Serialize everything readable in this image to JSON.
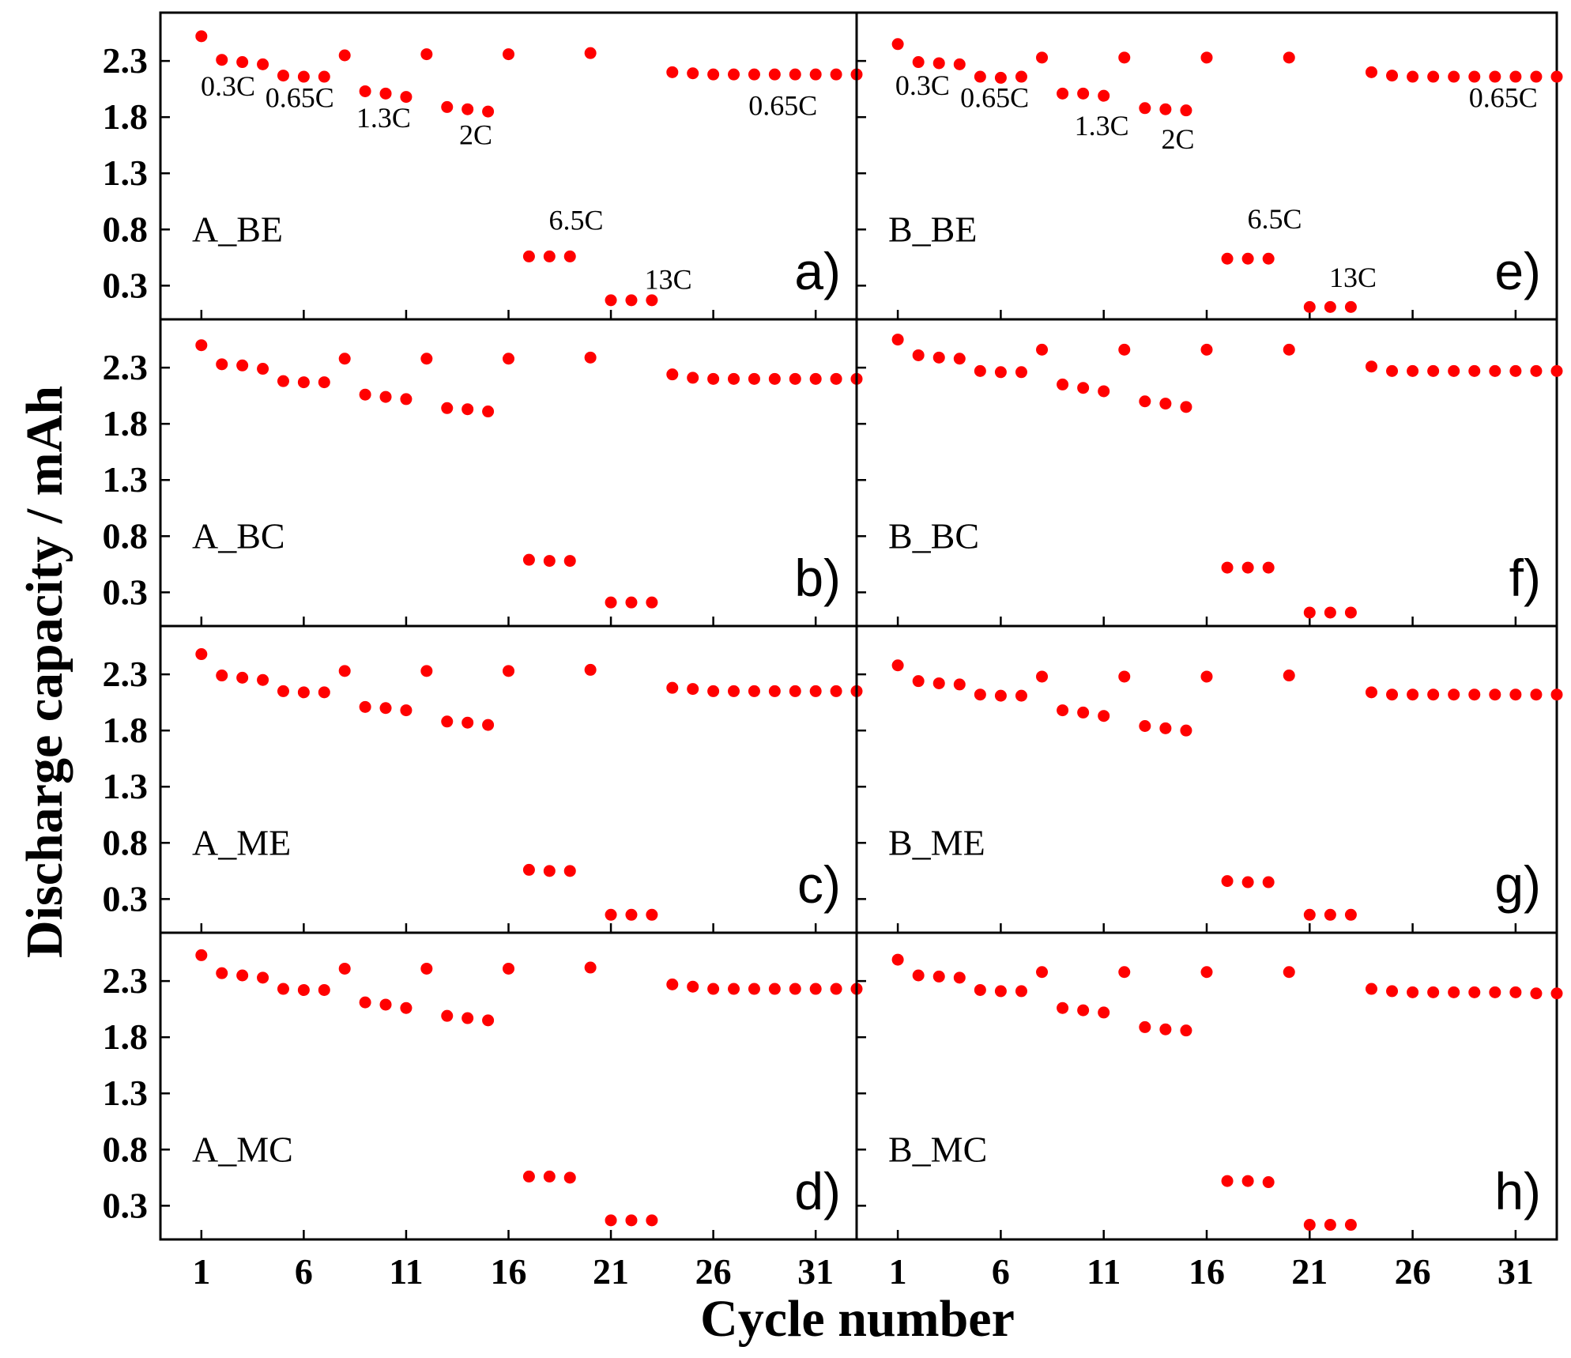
{
  "chart_data": {
    "type": "scatter",
    "title": "",
    "xlabel": "Cycle number",
    "ylabel": "Discharge capacity / mAh",
    "x_ticks": [
      "1",
      "6",
      "11",
      "16",
      "21",
      "26",
      "31"
    ],
    "y_ticks": [
      "0.3",
      "0.8",
      "1.3",
      "1.8",
      "2.3"
    ],
    "xlim": [
      -1,
      33
    ],
    "ylim": [
      0,
      2.73
    ],
    "marker_color": "#ff0000",
    "panels": [
      {
        "id": "a",
        "letter": "a)",
        "sample": "A_BE",
        "rate_labels": [
          {
            "text": "0.3C",
            "cycle": 2.3,
            "capacity": 1.99
          },
          {
            "text": "0.65C",
            "cycle": 5.8,
            "capacity": 1.89
          },
          {
            "text": "1.3C",
            "cycle": 9.9,
            "capacity": 1.71
          },
          {
            "text": "2C",
            "cycle": 14.4,
            "capacity": 1.56
          },
          {
            "text": "6.5C",
            "cycle": 19.3,
            "capacity": 0.8
          },
          {
            "text": "13C",
            "cycle": 23.8,
            "capacity": 0.27
          },
          {
            "text": "0.65C",
            "cycle": 29.4,
            "capacity": 1.82
          }
        ],
        "series": [
          {
            "name": "A_BE",
            "x": [
              1,
              2,
              3,
              4,
              5,
              6,
              7,
              8,
              9,
              10,
              11,
              12,
              13,
              14,
              15,
              16,
              17,
              18,
              19,
              20,
              21,
              22,
              23,
              24,
              25,
              26,
              27,
              28,
              29,
              30,
              31,
              32,
              33
            ],
            "y": [
              2.52,
              2.31,
              2.29,
              2.27,
              2.17,
              2.16,
              2.16,
              2.35,
              2.03,
              2.01,
              1.98,
              2.36,
              1.89,
              1.87,
              1.85,
              2.36,
              0.56,
              0.56,
              0.56,
              2.37,
              0.17,
              0.17,
              0.17,
              2.2,
              2.19,
              2.18,
              2.18,
              2.18,
              2.18,
              2.18,
              2.18,
              2.18,
              2.18
            ]
          }
        ]
      },
      {
        "id": "b",
        "letter": "b)",
        "sample": "A_BC",
        "rate_labels": [],
        "series": [
          {
            "name": "A_BC",
            "x": [
              1,
              2,
              3,
              4,
              5,
              6,
              7,
              8,
              9,
              10,
              11,
              12,
              13,
              14,
              15,
              16,
              17,
              18,
              19,
              20,
              21,
              22,
              23,
              24,
              25,
              26,
              27,
              28,
              29,
              30,
              31,
              32,
              33
            ],
            "y": [
              2.5,
              2.33,
              2.32,
              2.29,
              2.18,
              2.17,
              2.17,
              2.38,
              2.06,
              2.04,
              2.02,
              2.38,
              1.94,
              1.93,
              1.91,
              2.38,
              0.59,
              0.58,
              0.58,
              2.39,
              0.21,
              0.21,
              0.21,
              2.24,
              2.21,
              2.2,
              2.2,
              2.2,
              2.2,
              2.2,
              2.2,
              2.2,
              2.2
            ]
          }
        ]
      },
      {
        "id": "c",
        "letter": "c)",
        "sample": "A_ME",
        "rate_labels": [],
        "series": [
          {
            "name": "A_ME",
            "x": [
              1,
              2,
              3,
              4,
              5,
              6,
              7,
              8,
              9,
              10,
              11,
              12,
              13,
              14,
              15,
              16,
              17,
              18,
              19,
              20,
              21,
              22,
              23,
              24,
              25,
              26,
              27,
              28,
              29,
              30,
              31,
              32,
              33
            ],
            "y": [
              2.48,
              2.29,
              2.27,
              2.25,
              2.15,
              2.14,
              2.14,
              2.33,
              2.01,
              2.0,
              1.98,
              2.33,
              1.88,
              1.87,
              1.85,
              2.33,
              0.56,
              0.55,
              0.55,
              2.34,
              0.16,
              0.16,
              0.16,
              2.18,
              2.17,
              2.15,
              2.15,
              2.15,
              2.15,
              2.15,
              2.15,
              2.15,
              2.15
            ]
          }
        ]
      },
      {
        "id": "d",
        "letter": "d)",
        "sample": "A_MC",
        "rate_labels": [],
        "series": [
          {
            "name": "A_MC",
            "x": [
              1,
              2,
              3,
              4,
              5,
              6,
              7,
              8,
              9,
              10,
              11,
              12,
              13,
              14,
              15,
              16,
              17,
              18,
              19,
              20,
              21,
              22,
              23,
              24,
              25,
              26,
              27,
              28,
              29,
              30,
              31,
              32,
              33
            ],
            "y": [
              2.53,
              2.37,
              2.35,
              2.33,
              2.23,
              2.22,
              2.22,
              2.41,
              2.11,
              2.09,
              2.06,
              2.41,
              1.99,
              1.97,
              1.95,
              2.41,
              0.56,
              0.56,
              0.55,
              2.42,
              0.17,
              0.17,
              0.17,
              2.27,
              2.25,
              2.23,
              2.23,
              2.23,
              2.23,
              2.23,
              2.23,
              2.23,
              2.23
            ]
          }
        ]
      },
      {
        "id": "e",
        "letter": "e)",
        "sample": "B_BE",
        "rate_labels": [
          {
            "text": "0.3C",
            "cycle": 2.2,
            "capacity": 2.0
          },
          {
            "text": "0.65C",
            "cycle": 5.7,
            "capacity": 1.89
          },
          {
            "text": "1.3C",
            "cycle": 10.9,
            "capacity": 1.64
          },
          {
            "text": "2C",
            "cycle": 14.6,
            "capacity": 1.52
          },
          {
            "text": "6.5C",
            "cycle": 19.3,
            "capacity": 0.81
          },
          {
            "text": "13C",
            "cycle": 23.1,
            "capacity": 0.29
          },
          {
            "text": "0.65C",
            "cycle": 30.4,
            "capacity": 1.89
          }
        ],
        "series": [
          {
            "name": "B_BE",
            "x": [
              1,
              2,
              3,
              4,
              5,
              6,
              7,
              8,
              9,
              10,
              11,
              12,
              13,
              14,
              15,
              16,
              17,
              18,
              19,
              20,
              21,
              22,
              23,
              24,
              25,
              26,
              27,
              28,
              29,
              30,
              31,
              32,
              33
            ],
            "y": [
              2.45,
              2.29,
              2.28,
              2.27,
              2.16,
              2.15,
              2.16,
              2.33,
              2.01,
              2.01,
              1.99,
              2.33,
              1.88,
              1.87,
              1.86,
              2.33,
              0.54,
              0.54,
              0.54,
              2.33,
              0.11,
              0.11,
              0.11,
              2.2,
              2.17,
              2.16,
              2.16,
              2.16,
              2.16,
              2.16,
              2.16,
              2.16,
              2.16
            ]
          }
        ]
      },
      {
        "id": "f",
        "letter": "f)",
        "sample": "B_BC",
        "rate_labels": [],
        "series": [
          {
            "name": "B_BC",
            "x": [
              1,
              2,
              3,
              4,
              5,
              6,
              7,
              8,
              9,
              10,
              11,
              12,
              13,
              14,
              15,
              16,
              17,
              18,
              19,
              20,
              21,
              22,
              23,
              24,
              25,
              26,
              27,
              28,
              29,
              30,
              31,
              32,
              33
            ],
            "y": [
              2.55,
              2.41,
              2.39,
              2.38,
              2.27,
              2.26,
              2.26,
              2.46,
              2.15,
              2.12,
              2.09,
              2.46,
              2.0,
              1.98,
              1.95,
              2.46,
              0.52,
              0.52,
              0.52,
              2.46,
              0.12,
              0.12,
              0.12,
              2.31,
              2.27,
              2.27,
              2.27,
              2.27,
              2.27,
              2.27,
              2.27,
              2.27,
              2.27
            ]
          }
        ]
      },
      {
        "id": "g",
        "letter": "g)",
        "sample": "B_ME",
        "rate_labels": [],
        "series": [
          {
            "name": "B_ME",
            "x": [
              1,
              2,
              3,
              4,
              5,
              6,
              7,
              8,
              9,
              10,
              11,
              12,
              13,
              14,
              15,
              16,
              17,
              18,
              19,
              20,
              21,
              22,
              23,
              24,
              25,
              26,
              27,
              28,
              29,
              30,
              31,
              32,
              33
            ],
            "y": [
              2.38,
              2.24,
              2.22,
              2.21,
              2.12,
              2.11,
              2.11,
              2.28,
              1.98,
              1.96,
              1.93,
              2.28,
              1.84,
              1.82,
              1.8,
              2.28,
              0.46,
              0.45,
              0.45,
              2.29,
              0.16,
              0.16,
              0.16,
              2.14,
              2.12,
              2.12,
              2.12,
              2.12,
              2.12,
              2.12,
              2.12,
              2.12,
              2.12
            ]
          }
        ]
      },
      {
        "id": "h",
        "letter": "h)",
        "sample": "B_MC",
        "rate_labels": [],
        "series": [
          {
            "name": "B_MC",
            "x": [
              1,
              2,
              3,
              4,
              5,
              6,
              7,
              8,
              9,
              10,
              11,
              12,
              13,
              14,
              15,
              16,
              17,
              18,
              19,
              20,
              21,
              22,
              23,
              24,
              25,
              26,
              27,
              28,
              29,
              30,
              31,
              32,
              33
            ],
            "y": [
              2.49,
              2.35,
              2.34,
              2.33,
              2.22,
              2.21,
              2.21,
              2.38,
              2.06,
              2.04,
              2.02,
              2.38,
              1.89,
              1.87,
              1.86,
              2.38,
              0.52,
              0.52,
              0.51,
              2.38,
              0.13,
              0.13,
              0.13,
              2.23,
              2.21,
              2.2,
              2.2,
              2.2,
              2.2,
              2.2,
              2.2,
              2.19,
              2.19
            ]
          }
        ]
      }
    ]
  }
}
